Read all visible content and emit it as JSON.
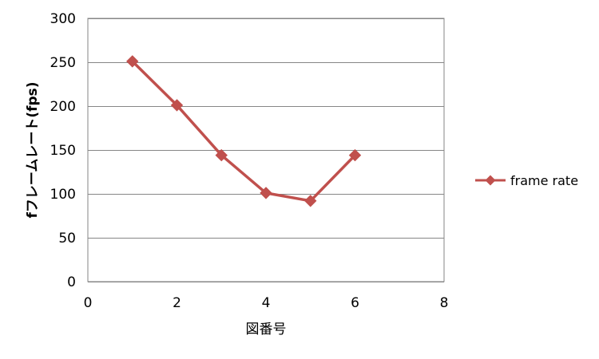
{
  "chart_data": {
    "type": "scatter",
    "title": "",
    "xlabel": "図番号",
    "ylabel": "fフレームレート(fps)",
    "xlim": [
      0,
      8
    ],
    "ylim": [
      0,
      300
    ],
    "xticks": [
      "0",
      "2",
      "4",
      "6",
      "8"
    ],
    "yticks": [
      "0",
      "50",
      "100",
      "150",
      "200",
      "250",
      "300"
    ],
    "grid": {
      "horizontal": true,
      "vertical": false
    },
    "legend_position": "right",
    "series": [
      {
        "name": "frame rate",
        "color": "#c0504d",
        "marker": "diamond",
        "line": "straight",
        "x": [
          1,
          2,
          3,
          4,
          5,
          6
        ],
        "y": [
          251,
          201,
          144,
          101,
          92,
          144
        ]
      }
    ]
  }
}
